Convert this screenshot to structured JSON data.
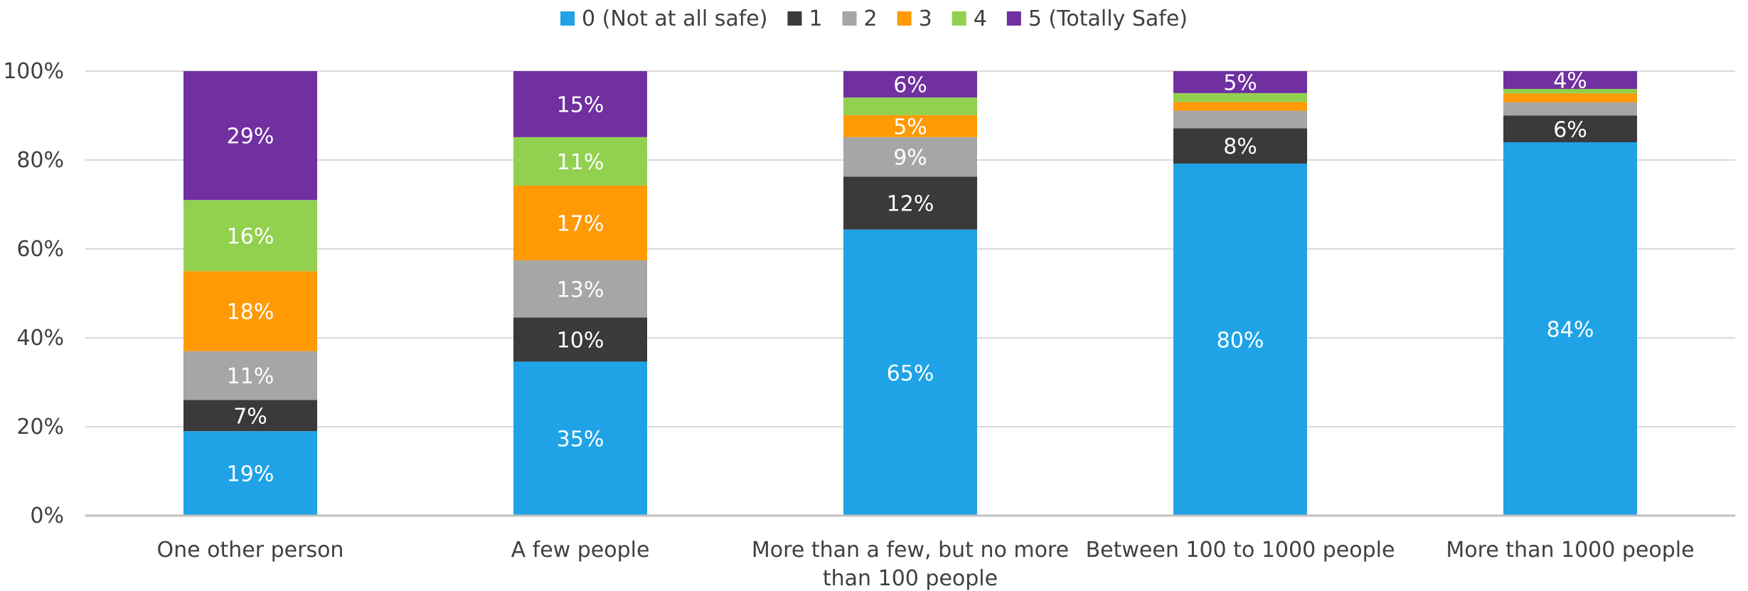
{
  "chart_data": {
    "type": "bar",
    "stacked": true,
    "percent_stacked": true,
    "categories": [
      [
        "One other person"
      ],
      [
        "A few people"
      ],
      [
        "More than a few, but no more",
        "than 100 people"
      ],
      [
        "Between 100 to 1000 people"
      ],
      [
        "More than 1000 people"
      ]
    ],
    "series": [
      {
        "name": "0 (Not at all safe)",
        "color": "#1FA3E6",
        "label_color": "#FFFFFF",
        "values": [
          19,
          35,
          65,
          80,
          84
        ],
        "labels": [
          "19%",
          "35%",
          "65%",
          "80%",
          "84%"
        ]
      },
      {
        "name": "1",
        "color": "#3A3A3A",
        "label_color": "#FFFFFF",
        "values": [
          7,
          10,
          12,
          8,
          6
        ],
        "labels": [
          "7%",
          "10%",
          "12%",
          "8%",
          "6%"
        ]
      },
      {
        "name": "2",
        "color": "#A6A6A6",
        "label_color": "#FFFFFF",
        "values": [
          11,
          13,
          9,
          4,
          3
        ],
        "labels": [
          "11%",
          "13%",
          "9%",
          "",
          ""
        ]
      },
      {
        "name": "3",
        "color": "#FF9A05",
        "label_color": "#FFFFFF",
        "values": [
          18,
          17,
          5,
          2,
          2
        ],
        "labels": [
          "18%",
          "17%",
          "5%",
          "",
          ""
        ]
      },
      {
        "name": "4",
        "color": "#92D050",
        "label_color": "#FFFFFF",
        "values": [
          16,
          11,
          4,
          2,
          1
        ],
        "labels": [
          "16%",
          "11%",
          "",
          "",
          ""
        ]
      },
      {
        "name": "5 (Totally Safe)",
        "color": "#7030A0",
        "label_color": "#FFFFFF",
        "values": [
          29,
          15,
          6,
          5,
          4
        ],
        "labels": [
          "29%",
          "15%",
          "6%",
          "5%",
          "4%"
        ]
      }
    ],
    "y_ticks": [
      "0%",
      "20%",
      "40%",
      "60%",
      "80%",
      "100%"
    ],
    "ylim": [
      0,
      100
    ],
    "grid": true,
    "legend_position": "top"
  }
}
